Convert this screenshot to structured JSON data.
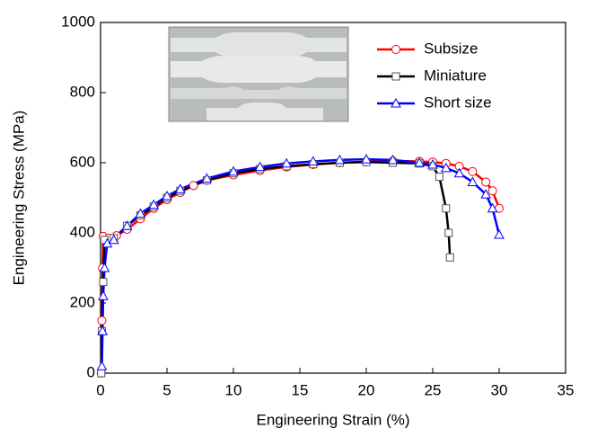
{
  "chart_data": {
    "type": "line",
    "x_label": "Engineering Strain (%)",
    "y_label": "Engineering Stress (MPa)",
    "xlim": [
      0,
      35
    ],
    "xticks": [
      0,
      5,
      10,
      15,
      20,
      25,
      30,
      35
    ],
    "ylim": [
      0,
      1000
    ],
    "yticks": [
      0,
      200,
      400,
      600,
      800,
      1000
    ],
    "legend": "upper right",
    "series": [
      {
        "name": "Subsize",
        "color": "#ff0000",
        "marker": "circle",
        "x": [
          0.05,
          0.1,
          0.15,
          0.2,
          0.6,
          1.2,
          2,
          3,
          4,
          5,
          6,
          7,
          8,
          10,
          12,
          14,
          16,
          18,
          20,
          22,
          24,
          25,
          26,
          27,
          28,
          29,
          29.5,
          30
        ],
        "values": [
          0,
          150,
          300,
          390,
          385,
          392,
          410,
          440,
          470,
          495,
          515,
          535,
          550,
          565,
          578,
          588,
          595,
          600,
          603,
          605,
          604,
          602,
          598,
          590,
          575,
          545,
          520,
          470
        ]
      },
      {
        "name": "Miniature",
        "color": "#000000",
        "marker": "square",
        "x": [
          0.05,
          0.1,
          0.2,
          0.3,
          1,
          2,
          3,
          4,
          5,
          6,
          8,
          10,
          12,
          14,
          16,
          18,
          20,
          22,
          24,
          25,
          25.5,
          26,
          26.2,
          26.3
        ],
        "values": [
          0,
          120,
          260,
          380,
          385,
          420,
          450,
          475,
          500,
          520,
          550,
          570,
          582,
          590,
          596,
          600,
          602,
          600,
          598,
          590,
          560,
          470,
          400,
          330
        ]
      },
      {
        "name": "Short size",
        "color": "#0000ff",
        "marker": "triangle",
        "x": [
          0.1,
          0.15,
          0.2,
          0.3,
          0.5,
          1,
          2,
          3,
          4,
          5,
          6,
          8,
          10,
          12,
          14,
          16,
          18,
          20,
          22,
          24,
          25,
          26,
          27,
          28,
          29,
          29.5,
          30
        ],
        "values": [
          20,
          120,
          220,
          300,
          370,
          380,
          420,
          455,
          480,
          505,
          525,
          555,
          575,
          588,
          598,
          604,
          608,
          610,
          608,
          600,
          595,
          585,
          570,
          545,
          510,
          470,
          395
        ]
      }
    ]
  }
}
